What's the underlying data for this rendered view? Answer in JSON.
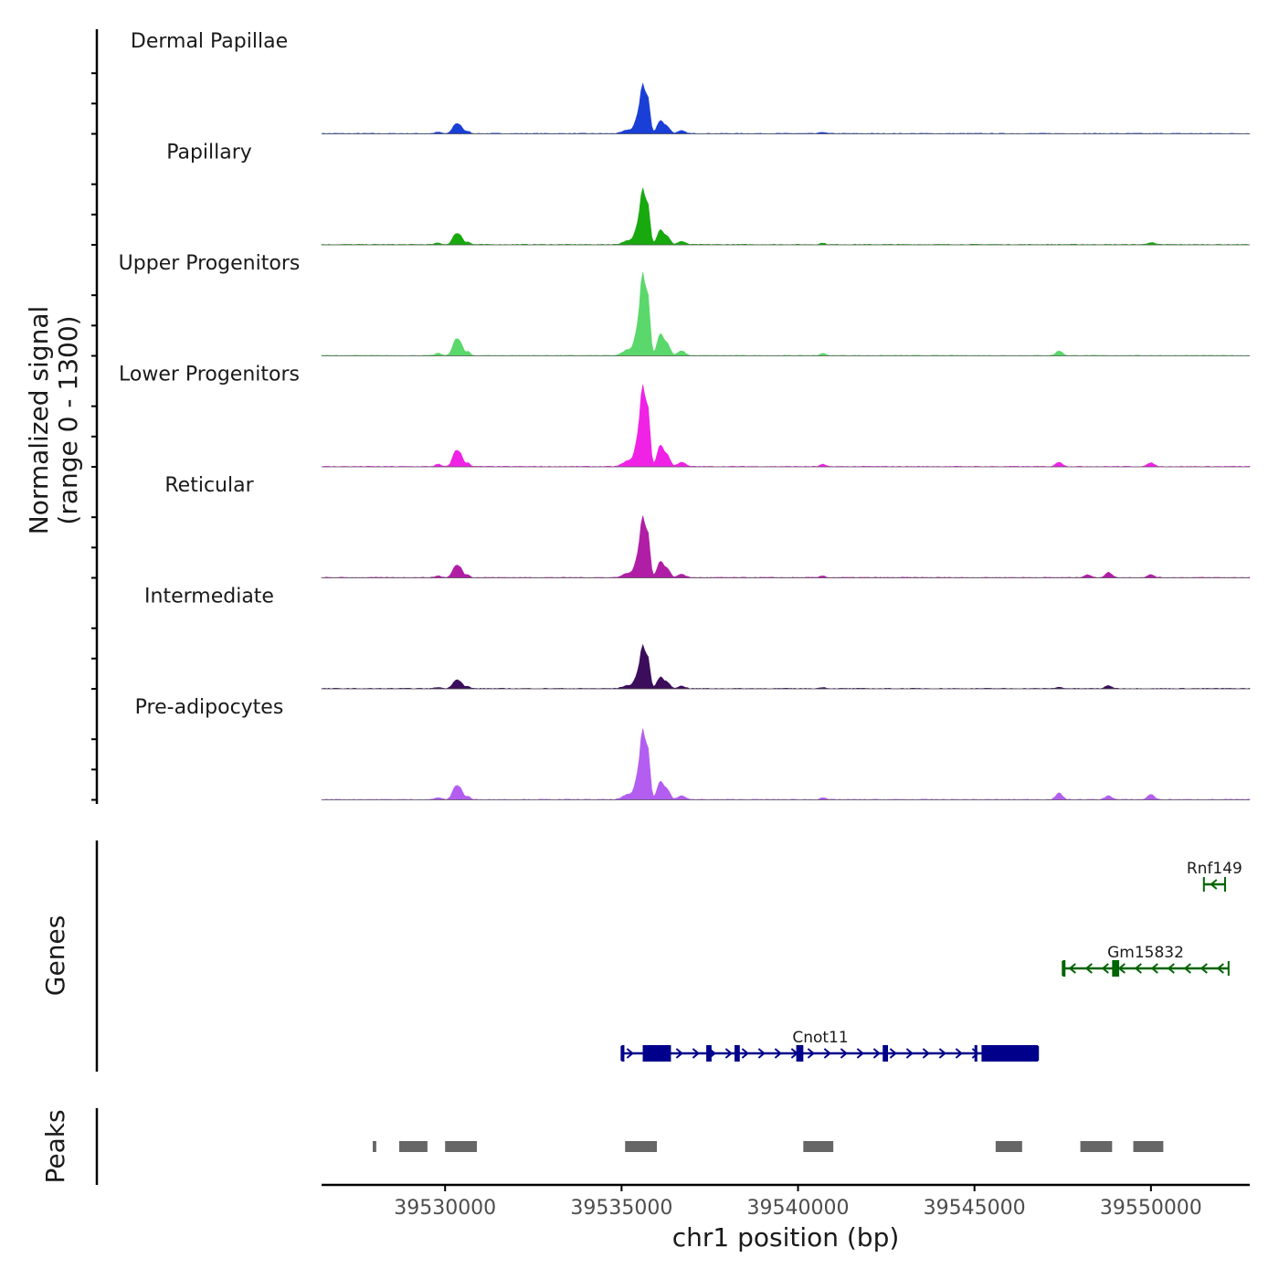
{
  "chart_data": {
    "type": "area",
    "title": "",
    "chromosome": "chr1",
    "xlabel": "chr1 position (bp)",
    "xlim": [
      39526500,
      39552800
    ],
    "x_ticks": [
      39530000,
      39535000,
      39540000,
      39545000,
      39550000
    ],
    "x_tick_labels": [
      "39530000",
      "39535000",
      "39540000",
      "39545000",
      "39550000"
    ],
    "signal_panel": {
      "ylabel_line1": "Normalized signal",
      "ylabel_line2": "(range 0 - 1300)",
      "range": [
        0,
        1300
      ],
      "series": [
        {
          "name": "Dermal Papillae",
          "color": "#1a3fd6",
          "scale": 0.55,
          "extra_peaks": []
        },
        {
          "name": "Papillary",
          "color": "#18a90f",
          "scale": 0.62,
          "extra_peaks": [
            [
              39550000,
              4
            ]
          ]
        },
        {
          "name": "Upper Progenitors",
          "color": "#5ad86b",
          "scale": 0.92,
          "extra_peaks": [
            [
              39547400,
              6
            ]
          ]
        },
        {
          "name": "Lower Progenitors",
          "color": "#f022e6",
          "scale": 0.9,
          "extra_peaks": [
            [
              39547400,
              6
            ],
            [
              39550000,
              5
            ]
          ]
        },
        {
          "name": "Reticular",
          "color": "#b01ea6",
          "scale": 0.68,
          "extra_peaks": [
            [
              39548200,
              5
            ],
            [
              39548800,
              9
            ],
            [
              39550000,
              5
            ]
          ]
        },
        {
          "name": "Intermediate",
          "color": "#3b0d5b",
          "scale": 0.48,
          "extra_peaks": [
            [
              39548800,
              7
            ],
            [
              39547400,
              3
            ]
          ]
        },
        {
          "name": "Pre-adipocytes",
          "color": "#b35ef0",
          "scale": 0.78,
          "extra_peaks": [
            [
              39547400,
              10
            ],
            [
              39548800,
              6
            ],
            [
              39550000,
              8
            ]
          ]
        }
      ],
      "common_peaks": [
        {
          "pos": 39530300,
          "height": 20,
          "width": 90
        },
        {
          "pos": 39530450,
          "height": 12,
          "width": 70
        },
        {
          "pos": 39530650,
          "height": 5,
          "width": 60
        },
        {
          "pos": 39535600,
          "height": 100,
          "width": 70
        },
        {
          "pos": 39535750,
          "height": 70,
          "width": 60
        },
        {
          "pos": 39535450,
          "height": 30,
          "width": 80
        },
        {
          "pos": 39536100,
          "height": 28,
          "width": 90
        },
        {
          "pos": 39536300,
          "height": 14,
          "width": 80
        },
        {
          "pos": 39535200,
          "height": 8,
          "width": 150
        },
        {
          "pos": 39536700,
          "height": 6,
          "width": 100
        },
        {
          "pos": 39540700,
          "height": 3,
          "width": 70
        },
        {
          "pos": 39529800,
          "height": 3,
          "width": 80
        }
      ]
    },
    "genes_panel": {
      "ylabel": "Genes",
      "genes": [
        {
          "name": "Rnf149",
          "strand": "-",
          "color": "#006400",
          "start": 39551500,
          "end": 39552100,
          "exons": [],
          "row": 0
        },
        {
          "name": "Gm15832",
          "strand": "-",
          "color": "#006400",
          "start": 39547500,
          "end": 39552200,
          "exons": [
            [
              39547500,
              39547560
            ],
            [
              39548900,
              39549100
            ]
          ],
          "row": 1
        },
        {
          "name": "Cnot11",
          "strand": "+",
          "color": "#00008b",
          "start": 39535000,
          "end": 39546800,
          "exons": [
            [
              39535000,
              39535080
            ],
            [
              39535600,
              39536400
            ],
            [
              39537400,
              39537550
            ],
            [
              39538200,
              39538350
            ],
            [
              39539950,
              39540150
            ],
            [
              39542400,
              39542550
            ],
            [
              39545000,
              39545080
            ],
            [
              39545200,
              39546800
            ]
          ],
          "row": 2
        }
      ]
    },
    "peaks_panel": {
      "ylabel": "Peaks",
      "color": "#666666",
      "regions": [
        [
          39527950,
          39528050
        ],
        [
          39528700,
          39529500
        ],
        [
          39530000,
          39530900
        ],
        [
          39535100,
          39536000
        ],
        [
          39540150,
          39541000
        ],
        [
          39545600,
          39546350
        ],
        [
          39548000,
          39548900
        ],
        [
          39549500,
          39550350
        ]
      ]
    }
  }
}
